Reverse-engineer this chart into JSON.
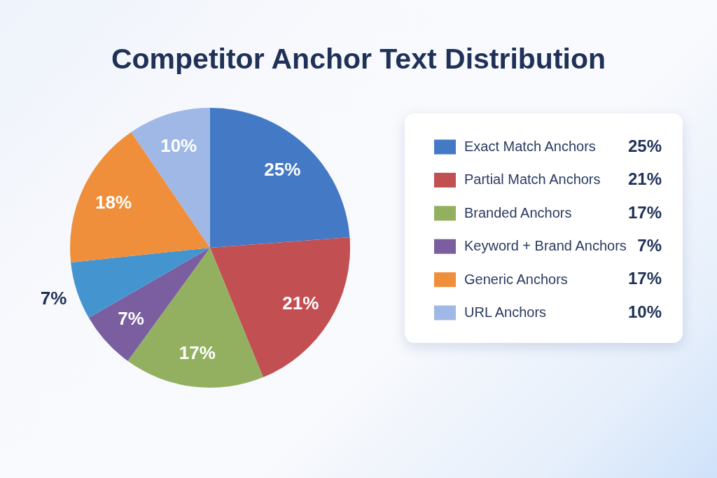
{
  "chart_data": {
    "type": "pie",
    "title": "Competitor Anchor Text Distribution",
    "categories": [
      "Exact Match Anchors",
      "Partial Match Anchors",
      "Branded Anchors",
      "Keyword + Brand Anchors",
      null,
      "Generic Anchors",
      "URL Anchors"
    ],
    "values": [
      25,
      21,
      17,
      7,
      7,
      18,
      10
    ],
    "colors": [
      "#4479c6",
      "#c24f52",
      "#93b061",
      "#7a5ea0",
      "#4494d0",
      "#ef8f3c",
      "#a0b8e6"
    ],
    "value_labels": [
      "25%",
      "21%",
      "17%",
      "7%",
      "7%",
      "18%",
      "10%"
    ],
    "legend": "right",
    "annotations": [
      "25%",
      "21%",
      "17%",
      "7%",
      "17%",
      "10%"
    ]
  }
}
